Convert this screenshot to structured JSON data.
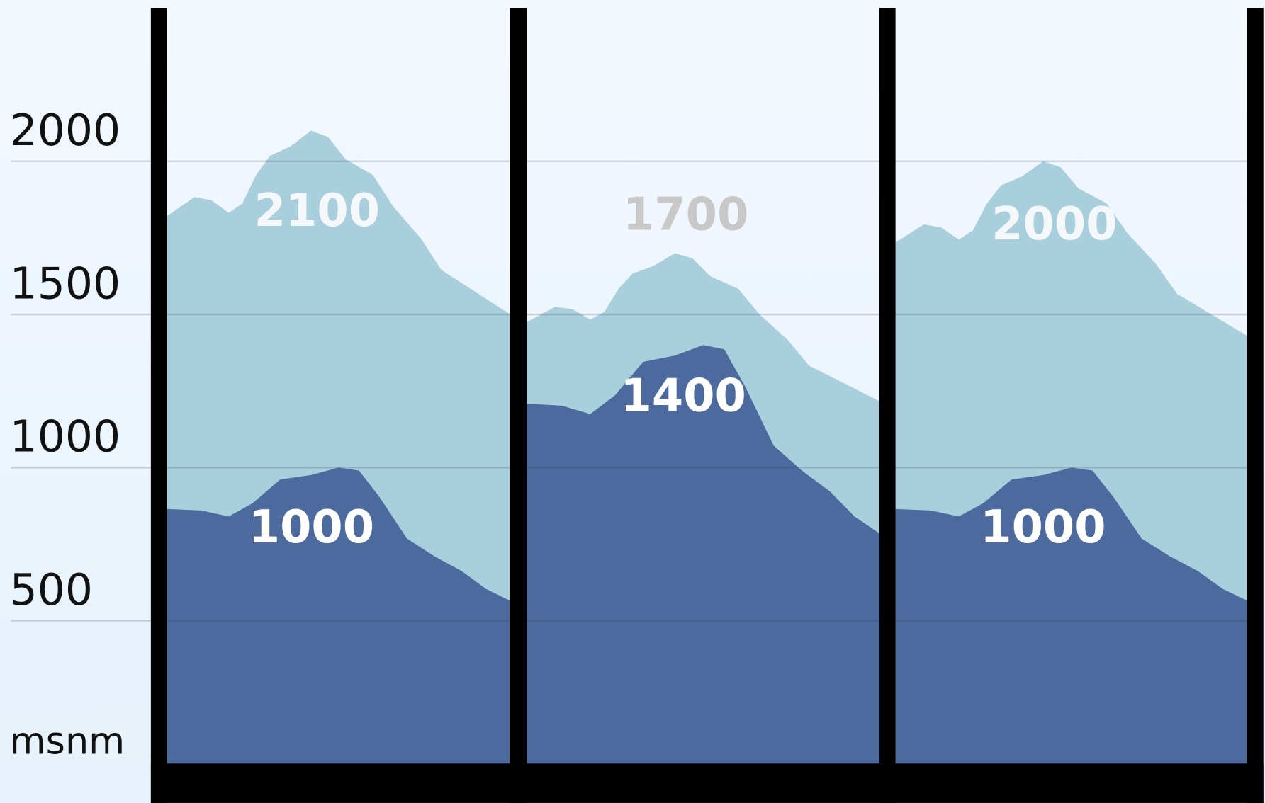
{
  "chart_data": {
    "type": "area",
    "y_label": "msnm",
    "ylim": [
      0,
      2500
    ],
    "yticks": [
      500,
      1000,
      1500,
      2000
    ],
    "grid": true,
    "colors": [
      "#a9cfdc",
      "#4c6a9e"
    ],
    "panels": [
      {
        "values": [
          2100,
          1000
        ],
        "label_colors": [
          "#f4f8fb",
          "#ffffff"
        ]
      },
      {
        "values": [
          1700,
          1400
        ],
        "label_colors": [
          "#c8c8c8",
          "#ffffff"
        ]
      },
      {
        "values": [
          2000,
          1000
        ],
        "label_colors": [
          "#f4f8fb",
          "#ffffff"
        ]
      }
    ]
  }
}
